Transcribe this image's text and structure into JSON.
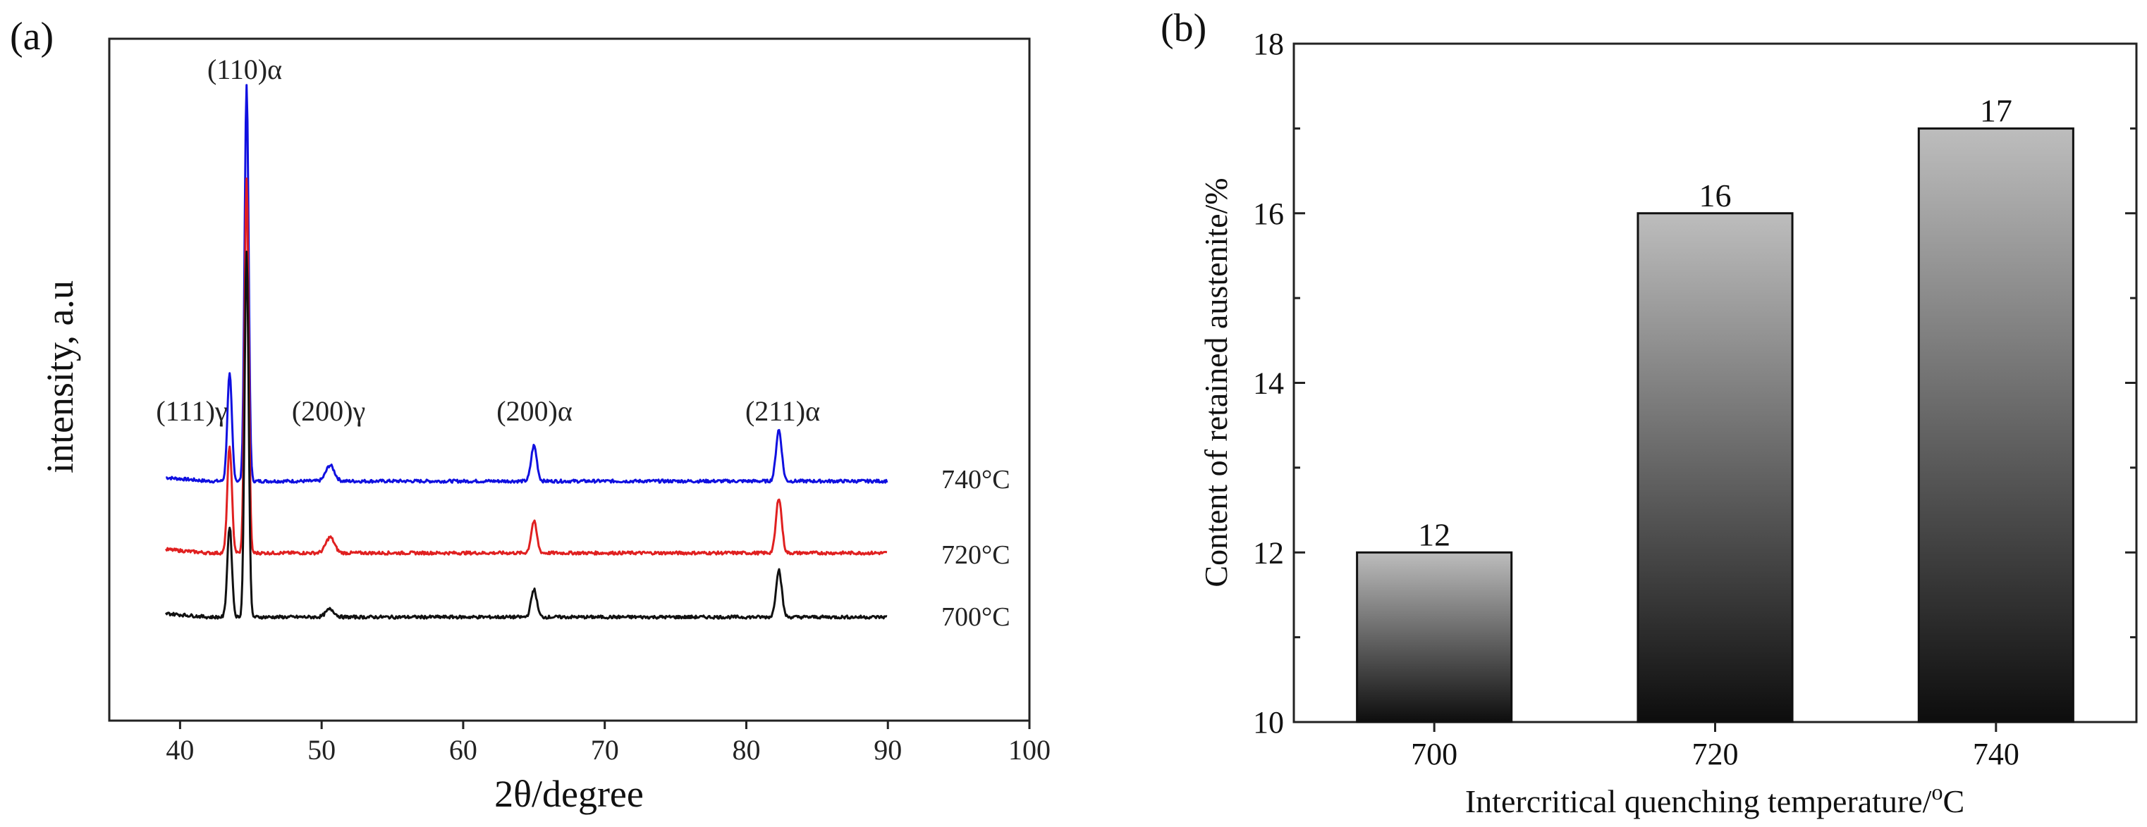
{
  "chart_data": [
    {
      "panel": "(a)",
      "type": "line",
      "xlabel": "2θ/degree",
      "ylabel": "intensity, a.u",
      "xlim": [
        35,
        100
      ],
      "xticks": [
        40,
        50,
        60,
        70,
        80,
        90,
        100
      ],
      "x_range_measured": [
        39,
        90
      ],
      "peaks": [
        {
          "label": "(111)γ",
          "x": 43.5
        },
        {
          "label": "(110)α",
          "x": 44.7
        },
        {
          "label": "(200)γ",
          "x": 50.6
        },
        {
          "label": "(200)α",
          "x": 65.0
        },
        {
          "label": "(211)α",
          "x": 82.3
        }
      ],
      "series": [
        {
          "name": "740°C",
          "color": "#1010e0",
          "peak_heights": [
            0.27,
            1.0,
            0.04,
            0.09,
            0.13
          ]
        },
        {
          "name": "720°C",
          "color": "#e02020",
          "peak_heights": [
            0.27,
            0.95,
            0.04,
            0.08,
            0.14
          ]
        },
        {
          "name": "700°C",
          "color": "#111111",
          "peak_heights": [
            0.23,
            0.93,
            0.02,
            0.07,
            0.12
          ]
        }
      ]
    },
    {
      "panel": "(b)",
      "type": "bar",
      "categories": [
        "700",
        "720",
        "740"
      ],
      "values": [
        12,
        16,
        17
      ],
      "xlabel": "Intercritical quenching temperature/°C",
      "xlabel_parts": {
        "main": "Intercritical quenching temperature/",
        "sup": "o",
        "tail": "C"
      },
      "ylabel": "Content of retained austenite/%",
      "ylim": [
        10,
        18
      ],
      "yticks": [
        10,
        12,
        14,
        16,
        18
      ],
      "bar_gradient": [
        "#bdbdbd",
        "#0d0d0d"
      ]
    }
  ]
}
